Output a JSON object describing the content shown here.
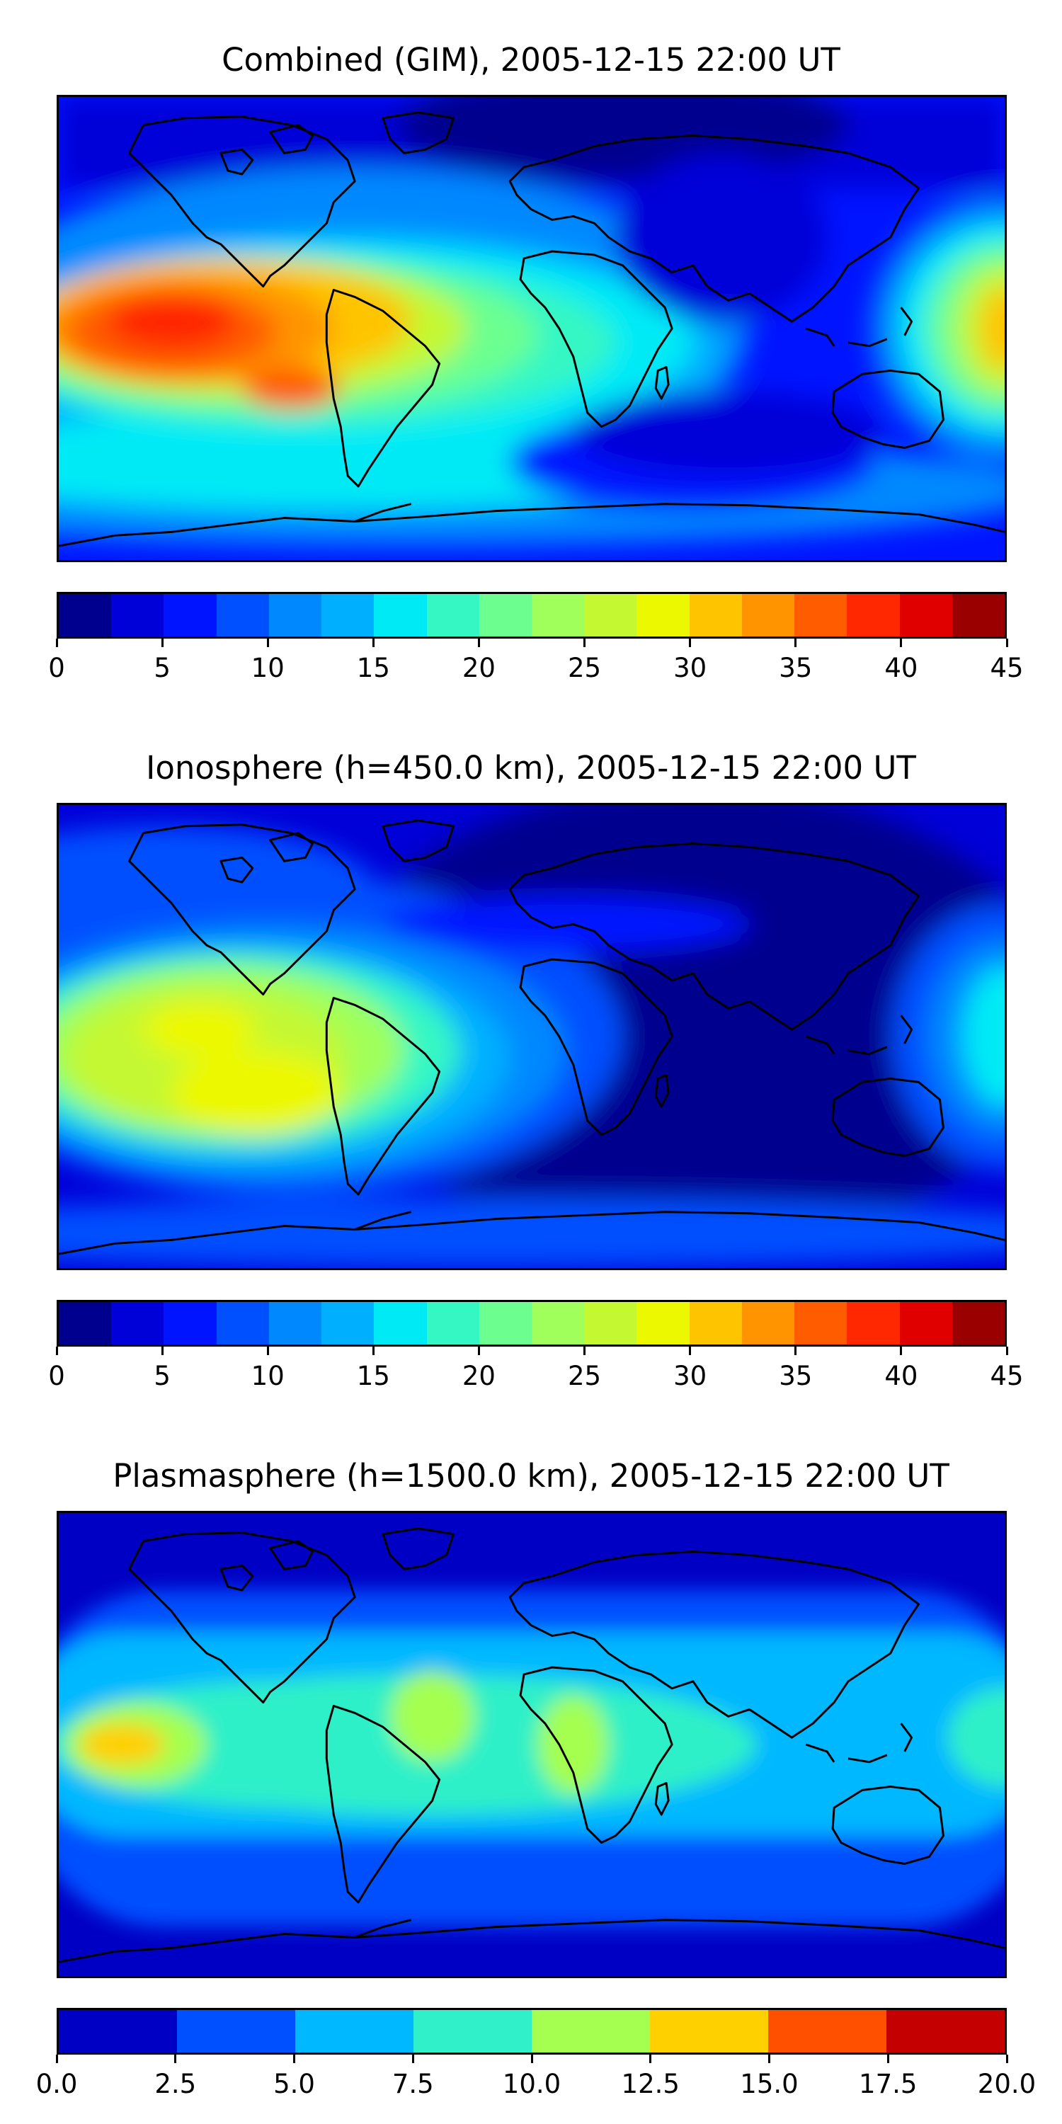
{
  "panels": [
    {
      "title": "Combined (GIM), 2005-12-15 22:00 UT",
      "colorbar": {
        "ticks": [
          "0",
          "5",
          "10",
          "15",
          "20",
          "25",
          "30",
          "35",
          "40",
          "45"
        ],
        "colors": [
          "#00008f",
          "#0000d8",
          "#0014ff",
          "#0050ff",
          "#0088ff",
          "#00b0ff",
          "#00eaf6",
          "#34f7c4",
          "#6cff90",
          "#a0ff5a",
          "#c4f830",
          "#ecf800",
          "#ffc400",
          "#ff9400",
          "#ff5c00",
          "#ff2800",
          "#e00000",
          "#9a0000"
        ]
      },
      "chart_data": {
        "type": "heatmap",
        "title": "Combined (GIM), 2005-12-15 22:00 UT",
        "colorbar_range": [
          0,
          45
        ],
        "features": [
          "peak ~37-40 over east Pacific / western South America",
          "secondary high ~28-32 at east edge (west Pacific)",
          "low ~2-7 over Asia / Indian Ocean"
        ]
      }
    },
    {
      "title": "Ionosphere  (h=450.0 km), 2005-12-15 22:00 UT",
      "colorbar": {
        "ticks": [
          "0",
          "5",
          "10",
          "15",
          "20",
          "25",
          "30",
          "35",
          "40",
          "45"
        ],
        "colors": [
          "#00008f",
          "#0000d8",
          "#0014ff",
          "#0050ff",
          "#0088ff",
          "#00b0ff",
          "#00eaf6",
          "#34f7c4",
          "#6cff90",
          "#a0ff5a",
          "#c4f830",
          "#ecf800",
          "#ffc400",
          "#ff9400",
          "#ff5c00",
          "#ff2800",
          "#e00000",
          "#9a0000"
        ]
      },
      "chart_data": {
        "type": "heatmap",
        "title": "Ionosphere  (h=450.0 km), 2005-12-15 22:00 UT",
        "colorbar_range": [
          0,
          45
        ],
        "features": [
          "peak ~27-32 over east Pacific / South America",
          "low ~0-5 over Africa / Asia / Indian Ocean"
        ]
      }
    },
    {
      "title": "Plasmasphere (h=1500.0 km), 2005-12-15 22:00 UT",
      "colorbar": {
        "ticks": [
          "0.0",
          "2.5",
          "5.0",
          "7.5",
          "10.0",
          "12.5",
          "15.0",
          "17.5",
          "20.0"
        ],
        "colors": [
          "#0000c4",
          "#0050ff",
          "#00b8ff",
          "#2ff0c8",
          "#a4ff50",
          "#ffd000",
          "#ff5000",
          "#c40000"
        ]
      },
      "chart_data": {
        "type": "heatmap",
        "title": "Plasmasphere (h=1500.0 km), 2005-12-15 22:00 UT",
        "colorbar_range": [
          0.0,
          20.0
        ],
        "features": [
          "equatorial band ~5-12.5",
          "peak ~12.5-15 in east Pacific",
          "polar regions ~0-2.5"
        ]
      }
    }
  ]
}
